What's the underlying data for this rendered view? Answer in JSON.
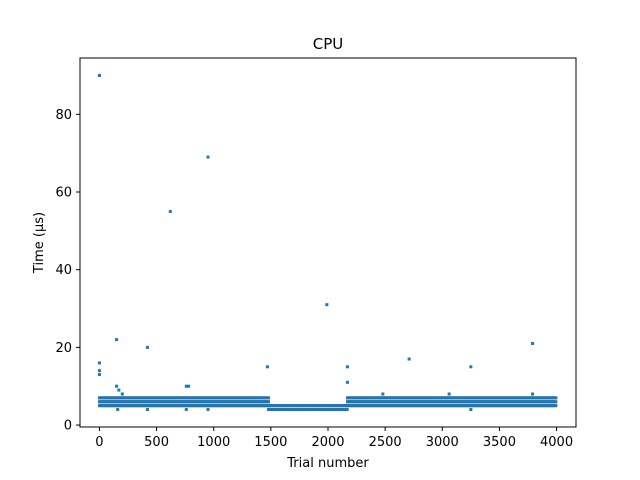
{
  "chart_data": {
    "type": "scatter",
    "title": "CPU",
    "xlabel": "Trial number",
    "ylabel": "Time (µs)",
    "xlim": [
      -170,
      4170
    ],
    "ylim": [
      -0.5,
      94.5
    ],
    "xticks": [
      0,
      500,
      1000,
      1500,
      2000,
      2500,
      3000,
      3500,
      4000
    ],
    "yticks": [
      0,
      20,
      40,
      60,
      80
    ],
    "grid": false,
    "legend": "none",
    "marker_color": "#1f77b4",
    "series": [
      {
        "points": [
          [
            0,
            90
          ],
          [
            0,
            16
          ],
          [
            0,
            14
          ],
          [
            0,
            13
          ],
          [
            150,
            22
          ],
          [
            150,
            10
          ],
          [
            170,
            9
          ],
          [
            200,
            8
          ],
          [
            160,
            4
          ],
          [
            420,
            20
          ],
          [
            420,
            4
          ],
          [
            620,
            55
          ],
          [
            760,
            10
          ],
          [
            780,
            10
          ],
          [
            760,
            4
          ],
          [
            950,
            69
          ],
          [
            950,
            4
          ],
          [
            1470,
            15
          ],
          [
            1990,
            31
          ],
          [
            2170,
            15
          ],
          [
            2170,
            11
          ],
          [
            2480,
            8
          ],
          [
            2710,
            17
          ],
          [
            3060,
            8
          ],
          [
            3250,
            15
          ],
          [
            3250,
            4
          ],
          [
            3790,
            21
          ],
          [
            3790,
            8
          ]
        ],
        "bands": [
          {
            "x_start": 0,
            "x_end": 1480,
            "y_values": [
              5,
              6,
              7
            ]
          },
          {
            "x_start": 1480,
            "x_end": 2170,
            "y_values": [
              4,
              5
            ]
          },
          {
            "x_start": 2170,
            "x_end": 4000,
            "y_values": [
              5,
              6,
              7
            ]
          }
        ]
      }
    ]
  }
}
